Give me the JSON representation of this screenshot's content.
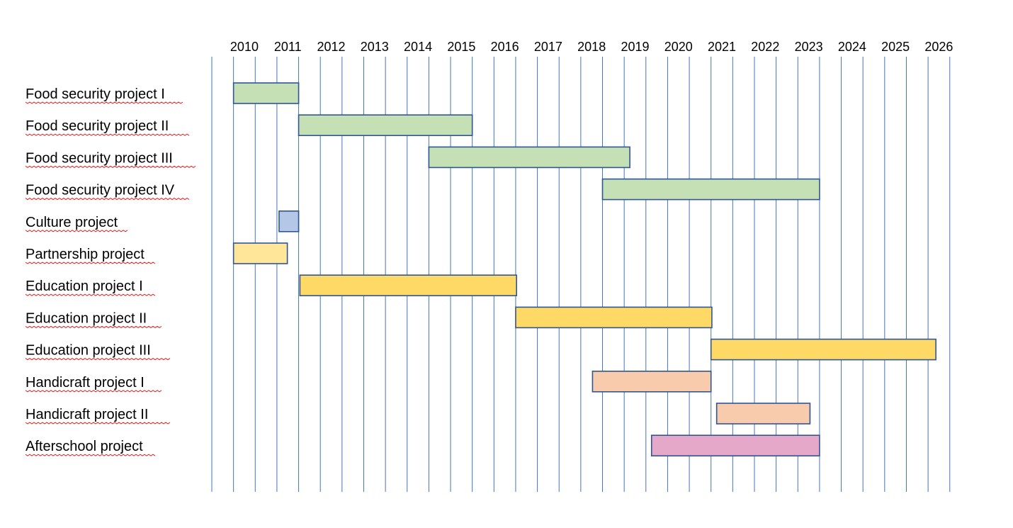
{
  "chart_data": {
    "type": "gantt",
    "title": "",
    "xlabel": "",
    "ylabel": "",
    "x_ticks": [
      "2010",
      "2011",
      "2012",
      "2013",
      "2014",
      "2015",
      "2016",
      "2017",
      "2018",
      "2019",
      "2020",
      "2021",
      "2022",
      "2023",
      "2024",
      "2025",
      "2026"
    ],
    "xlim": [
      2009.5,
      2026.7
    ],
    "grid": "vertical",
    "tasks": [
      {
        "label": "Food security project I",
        "start": 2010.0,
        "end": 2011.5,
        "color": "#c5e0b4"
      },
      {
        "label": "Food security project II",
        "start": 2011.5,
        "end": 2015.5,
        "color": "#c5e0b4"
      },
      {
        "label": "Food security project III",
        "start": 2014.5,
        "end": 2019.13,
        "color": "#c5e0b4"
      },
      {
        "label": "Food security project IV",
        "start": 2018.5,
        "end": 2023.5,
        "color": "#c5e0b4"
      },
      {
        "label": "Culture project",
        "start": 2011.05,
        "end": 2011.5,
        "color": "#b4c7e7"
      },
      {
        "label": "Partnership project",
        "start": 2010.0,
        "end": 2011.24,
        "color": "#ffe699"
      },
      {
        "label": "Education project I",
        "start": 2011.53,
        "end": 2016.52,
        "color": "#ffd966"
      },
      {
        "label": "Education project II",
        "start": 2016.5,
        "end": 2021.02,
        "color": "#ffd966"
      },
      {
        "label": "Education project III",
        "start": 2021.0,
        "end": 2026.18,
        "color": "#ffd966"
      },
      {
        "label": "Handicraft project I",
        "start": 2018.27,
        "end": 2021.0,
        "color": "#f8cbad"
      },
      {
        "label": "Handicraft project II",
        "start": 2021.13,
        "end": 2023.28,
        "color": "#f8cbad"
      },
      {
        "label": "Afterschool project",
        "start": 2019.63,
        "end": 2023.5,
        "color": "#e6a8c8"
      }
    ]
  }
}
